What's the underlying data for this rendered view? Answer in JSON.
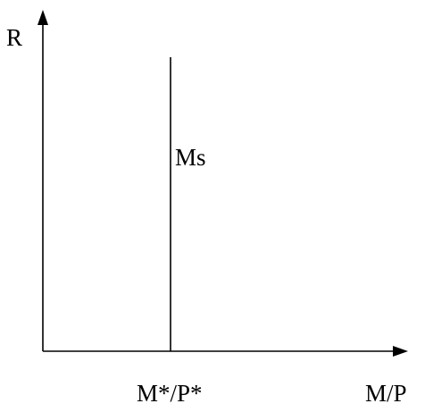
{
  "diagram": {
    "y_axis_label": "R",
    "x_axis_label": "M/P",
    "curve_label": "Ms",
    "x_tick_label": "M*/P*",
    "stroke_color": "#000000",
    "background_color": "#ffffff"
  }
}
